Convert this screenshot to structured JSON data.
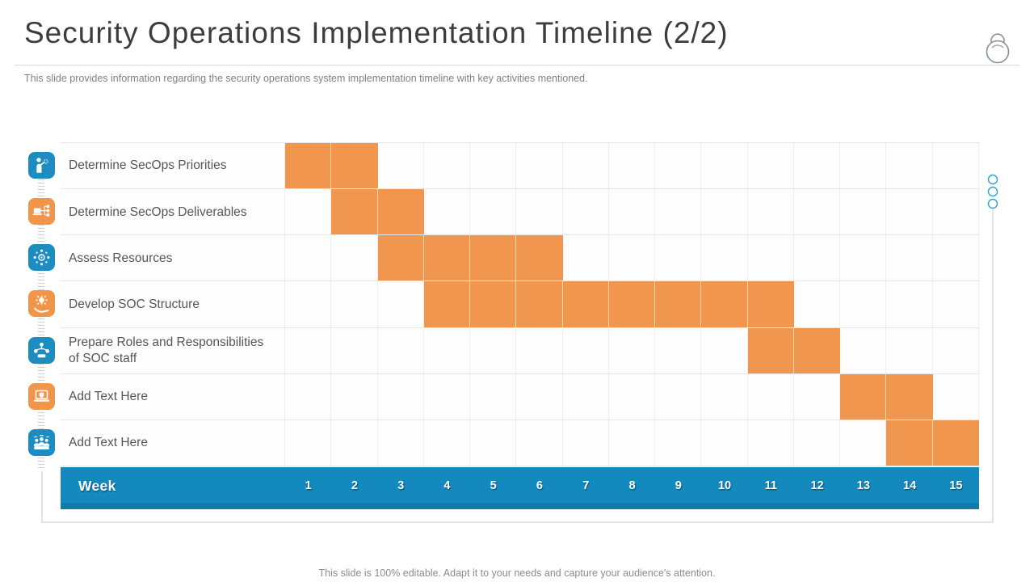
{
  "slide": {
    "title": "Security Operations Implementation Timeline (2/2)",
    "subtitle": "This slide provides information regarding the security operations system implementation timeline with key activities mentioned.",
    "footer": "This slide is 100% editable. Adapt it to your needs and capture your audience's attention."
  },
  "colors": {
    "bar_orange": "#F0964E",
    "bar_divider": "#FAD9A0",
    "header_blue": "#1389BE",
    "icon_blue": "#1D8CC0",
    "icon_orange": "#F0954A",
    "accent_dot": "#2BA3D2",
    "connector_gray": "#C8C8C8"
  },
  "chart_data": {
    "type": "gantt",
    "title": "Security Operations Implementation Timeline (2/2)",
    "axis_label": "Week",
    "week_numbers": [
      1,
      2,
      3,
      4,
      5,
      6,
      7,
      8,
      9,
      10,
      11,
      12,
      13,
      14,
      15
    ],
    "x_range": [
      1,
      15
    ],
    "bar_color": "#F0964E",
    "tasks": [
      {
        "label": "Determine SecOps Priorities",
        "start_week": 1,
        "end_week": 2,
        "icon": "presenter-icon",
        "icon_color": "blue"
      },
      {
        "label": "Determine SecOps Deliverables",
        "start_week": 2,
        "end_week": 3,
        "icon": "flowchart-icon",
        "icon_color": "orange"
      },
      {
        "label": "Assess Resources",
        "start_week": 3,
        "end_week": 6,
        "icon": "network-hub-icon",
        "icon_color": "blue"
      },
      {
        "label": "Develop SOC Structure",
        "start_week": 4,
        "end_week": 11,
        "icon": "gear-hand-icon",
        "icon_color": "orange"
      },
      {
        "label": "Prepare Roles and Responsibilities of SOC staff",
        "start_week": 11,
        "end_week": 12,
        "icon": "org-chart-icon",
        "icon_color": "blue"
      },
      {
        "label": "Add Text Here",
        "start_week": 13,
        "end_week": 14,
        "icon": "laptop-shield-icon",
        "icon_color": "orange"
      },
      {
        "label": "Add Text Here",
        "start_week": 14,
        "end_week": 15,
        "icon": "team-icon",
        "icon_color": "blue"
      }
    ]
  }
}
